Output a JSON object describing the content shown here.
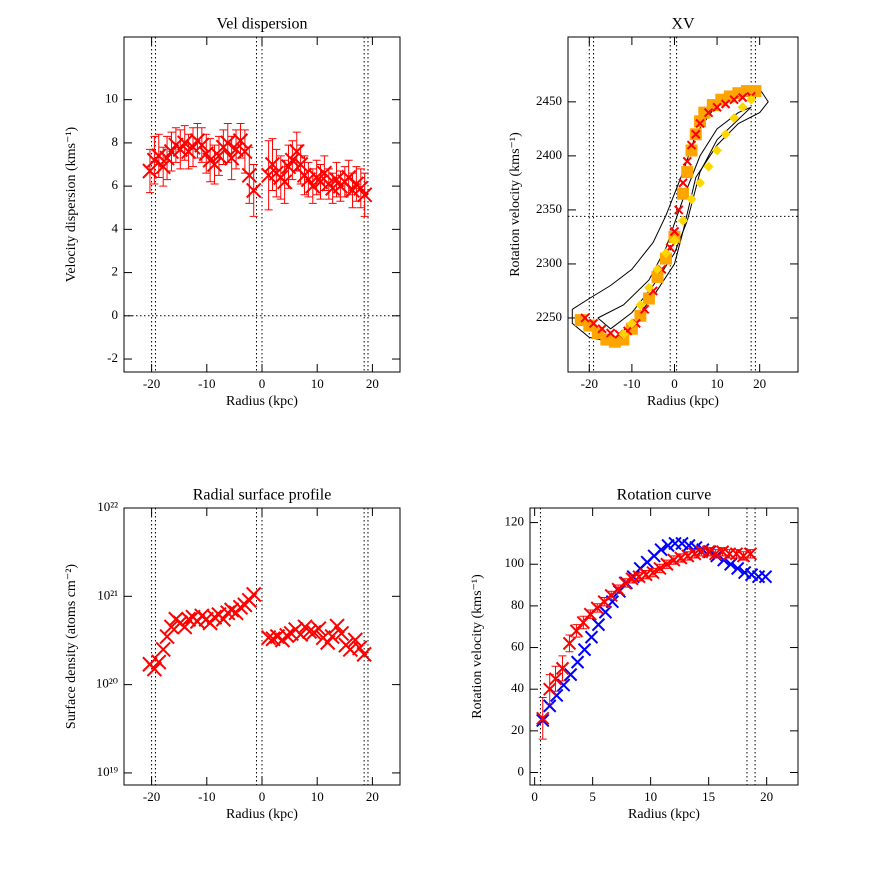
{
  "chart_data": [
    {
      "type": "scatter",
      "title": "Vel dispersion",
      "x_label": "Radius (kpc)",
      "y_label": "Velocity dispersion (kms⁻¹)",
      "xlim": [
        -25,
        25
      ],
      "ylim": [
        -2.6,
        12.9
      ],
      "xticks": [
        -20,
        -10,
        0,
        10,
        20
      ],
      "yticks": [
        -2,
        0,
        2,
        4,
        6,
        8,
        10
      ],
      "vlines": [
        -20,
        -19.3,
        -1,
        0,
        18.5,
        19.2
      ],
      "hlines": [
        0
      ],
      "series": [
        {
          "color": "#ff0000",
          "marker": "x",
          "x": [
            -20.3,
            -19.5,
            -18.7,
            -17.9,
            -17.2,
            -16.4,
            -15.6,
            -14.8,
            -14.0,
            -13.3,
            -12.5,
            -11.7,
            -10.9,
            -10.1,
            -9.4,
            -8.6,
            -7.8,
            -7.0,
            -6.2,
            -5.5,
            -4.7,
            -3.9,
            -3.1,
            -2.3,
            -1.5,
            1.2,
            1.9,
            2.6,
            3.4,
            4.1,
            4.8,
            5.5,
            6.3,
            7.0,
            7.7,
            8.4,
            9.2,
            9.9,
            10.6,
            11.3,
            12.1,
            12.8,
            13.5,
            14.2,
            15.0,
            15.7,
            16.4,
            17.1,
            17.9,
            18.6
          ],
          "values": [
            6.7,
            7.2,
            7.4,
            6.9,
            7.3,
            7.6,
            7.9,
            7.7,
            8.0,
            7.6,
            7.8,
            8.1,
            7.9,
            7.5,
            7.2,
            7.0,
            7.4,
            7.8,
            8.0,
            7.3,
            7.7,
            8.1,
            7.6,
            6.5,
            5.8,
            6.5,
            7.0,
            6.6,
            6.4,
            6.2,
            6.9,
            7.2,
            7.6,
            7.0,
            6.5,
            6.3,
            6.0,
            6.4,
            6.2,
            6.6,
            6.1,
            5.9,
            6.3,
            6.0,
            6.2,
            6.4,
            5.8,
            6.1,
            5.9,
            5.6
          ],
          "errors": [
            1.0,
            1.1,
            1.0,
            0.9,
            1.0,
            0.9,
            0.8,
            0.9,
            0.8,
            0.8,
            0.9,
            0.8,
            0.8,
            0.9,
            1.0,
            0.9,
            0.9,
            0.8,
            0.9,
            1.0,
            0.9,
            0.8,
            1.0,
            1.3,
            1.2,
            1.6,
            1.2,
            1.1,
            1.0,
            1.0,
            1.0,
            0.9,
            0.9,
            0.9,
            0.9,
            0.8,
            0.8,
            0.8,
            0.8,
            0.8,
            0.7,
            0.7,
            0.8,
            0.7,
            0.7,
            0.8,
            0.8,
            0.8,
            0.9,
            1.0
          ]
        }
      ]
    },
    {
      "type": "scatter",
      "title": "XV",
      "x_label": "Radius (kpc)",
      "y_label": "Rotation velocity (kms⁻¹)",
      "xlim": [
        -25,
        29
      ],
      "ylim": [
        2200,
        2510
      ],
      "xticks": [
        -20,
        -10,
        0,
        10,
        20
      ],
      "yticks": [
        2250,
        2300,
        2350,
        2400,
        2450
      ],
      "vlines": [
        -20,
        -19,
        -1,
        0.5,
        18,
        19
      ],
      "hlines": [
        2344
      ],
      "series": [
        {
          "color": "#000000",
          "marker": "line",
          "x": [
            -24,
            -20,
            -15,
            -10,
            -5,
            -2,
            2,
            5,
            10,
            15,
            20,
            22,
            20,
            15,
            10,
            5,
            2,
            0,
            -5,
            -10,
            -15,
            -20,
            -24,
            -24
          ],
          "values": [
            2258,
            2268,
            2280,
            2295,
            2320,
            2345,
            2385,
            2420,
            2448,
            2460,
            2462,
            2450,
            2440,
            2430,
            2410,
            2380,
            2330,
            2300,
            2270,
            2245,
            2228,
            2232,
            2245,
            2258
          ]
        },
        {
          "color": "#000000",
          "marker": "line",
          "x": [
            -18,
            -12,
            -6,
            -2,
            2,
            6,
            10,
            15,
            18,
            14,
            10,
            6,
            3,
            0,
            -5,
            -10,
            -15,
            -18
          ],
          "values": [
            2250,
            2262,
            2285,
            2315,
            2360,
            2400,
            2425,
            2440,
            2445,
            2430,
            2415,
            2385,
            2340,
            2310,
            2280,
            2255,
            2240,
            2250
          ]
        },
        {
          "color": "#ffa500",
          "marker": "square",
          "x": [
            -22,
            -20,
            -18,
            -16,
            -14,
            -12,
            -10,
            -8,
            -6,
            -4,
            -2,
            0,
            2,
            3,
            4,
            5,
            6,
            7,
            9,
            11,
            13,
            15,
            17,
            19
          ],
          "values": [
            2248,
            2243,
            2236,
            2230,
            2228,
            2230,
            2240,
            2252,
            2268,
            2288,
            2305,
            2325,
            2365,
            2385,
            2405,
            2420,
            2432,
            2440,
            2447,
            2452,
            2455,
            2458,
            2460,
            2460
          ]
        },
        {
          "color": "#ff0000",
          "marker": "x",
          "x": [
            -21,
            -19,
            -17,
            -15,
            -13,
            -11,
            -9,
            -7,
            -5,
            -3,
            -1,
            0,
            1,
            2,
            3,
            4,
            5,
            6,
            8,
            10,
            12,
            14,
            16,
            18
          ],
          "values": [
            2250,
            2245,
            2240,
            2236,
            2235,
            2238,
            2245,
            2258,
            2275,
            2295,
            2315,
            2330,
            2350,
            2375,
            2395,
            2410,
            2420,
            2430,
            2440,
            2445,
            2448,
            2452,
            2454,
            2455
          ]
        },
        {
          "color": "#ffd700",
          "marker": "diamond",
          "x": [
            -12,
            -10,
            -8,
            -6,
            -4,
            -2,
            0,
            2,
            4,
            6,
            8,
            10,
            12,
            14,
            16,
            18
          ],
          "values": [
            2235,
            2245,
            2262,
            2278,
            2295,
            2310,
            2322,
            2340,
            2360,
            2375,
            2390,
            2405,
            2420,
            2435,
            2445,
            2452
          ]
        }
      ]
    },
    {
      "type": "scatter",
      "title": "Radial surface profile",
      "x_label": "Radius (kpc)",
      "y_label": "Surface density (atoms cm⁻²)",
      "xlim": [
        -25,
        25
      ],
      "ylim": [
        7.3e+18,
        1e+22
      ],
      "ylog": true,
      "xticks": [
        -20,
        -10,
        0,
        10,
        20
      ],
      "yticks": [
        {
          "value": 1e+19,
          "label": "10¹⁹"
        },
        {
          "value": 1e+20,
          "label": "10²⁰"
        },
        {
          "value": 1e+21,
          "label": "10²¹"
        },
        {
          "value": 1e+22,
          "label": "10²²"
        }
      ],
      "vlines": [
        -20,
        -19.3,
        -1,
        0,
        18.5,
        19.2
      ],
      "series": [
        {
          "color": "#ff0000",
          "marker": "x",
          "x": [
            -20.3,
            -19.5,
            -18.7,
            -17.9,
            -17.2,
            -16.4,
            -15.6,
            -14.8,
            -14.0,
            -13.3,
            -12.5,
            -11.7,
            -10.9,
            -10.1,
            -9.4,
            -8.6,
            -7.8,
            -7.0,
            -6.2,
            -5.5,
            -4.7,
            -3.9,
            -3.1,
            -2.3,
            -1.5,
            1.2,
            2.0,
            2.8,
            3.7,
            4.5,
            5.3,
            6.1,
            7.0,
            7.8,
            8.6,
            9.4,
            10.3,
            11.1,
            11.9,
            12.7,
            13.6,
            14.4,
            15.2,
            16.0,
            16.9,
            17.7,
            18.5
          ],
          "values": [
            1.7e+20,
            1.5e+20,
            1.8e+20,
            2.5e+20,
            3.5e+20,
            4.5e+20,
            5.5e+20,
            5e+20,
            4.5e+20,
            5.5e+20,
            5.8e+20,
            5.2e+20,
            6e+20,
            5.5e+20,
            5e+20,
            5.8e+20,
            6.2e+20,
            5.5e+20,
            6.5e+20,
            7e+20,
            6.5e+20,
            7.5e+20,
            8e+20,
            9e+20,
            1.05e+21,
            3.4e+20,
            3.3e+20,
            3.5e+20,
            3.2e+20,
            3.6e+20,
            3.8e+20,
            4.2e+20,
            3.7e+20,
            4.5e+20,
            4e+20,
            3.9e+20,
            4.3e+20,
            3.4e+20,
            3e+20,
            3.5e+20,
            4.6e+20,
            3.8e+20,
            2.8e+20,
            2.5e+20,
            3.2e+20,
            2.6e+20,
            2.2e+20
          ]
        }
      ]
    },
    {
      "type": "scatter",
      "title": "Rotation curve",
      "x_label": "Radius (kpc)",
      "y_label": "Rotation velocity (kms⁻¹)",
      "xlim": [
        -0.4,
        22.7
      ],
      "ylim": [
        -6,
        127
      ],
      "xticks": [
        0,
        5,
        10,
        15,
        20
      ],
      "yticks": [
        0,
        20,
        40,
        60,
        80,
        100,
        120
      ],
      "vlines": [
        0.5,
        18.3,
        19
      ],
      "series": [
        {
          "color": "#0000ff",
          "marker": "x",
          "x": [
            0.7,
            1.3,
            1.9,
            2.5,
            3.1,
            3.7,
            4.3,
            4.9,
            5.5,
            6.1,
            6.7,
            7.3,
            7.9,
            8.5,
            9.1,
            9.7,
            10.3,
            10.9,
            11.5,
            12.1,
            12.7,
            13.3,
            13.9,
            14.5,
            15.1,
            15.7,
            16.3,
            16.9,
            17.5,
            18.1,
            18.7,
            19.3,
            19.9
          ],
          "values": [
            25,
            32,
            37,
            42,
            47,
            53,
            59,
            65,
            71,
            77,
            82,
            87,
            91,
            94,
            98,
            101,
            104,
            107,
            109,
            110,
            110,
            109,
            108,
            107,
            106,
            104,
            102,
            100,
            98,
            96,
            95,
            94,
            94
          ]
        },
        {
          "color": "#ff0000",
          "marker": "x",
          "x": [
            0.7,
            1.3,
            1.8,
            2.4,
            3.0,
            3.6,
            4.2,
            4.8,
            5.4,
            6.0,
            6.6,
            7.2,
            7.8,
            8.4,
            9.0,
            9.6,
            10.2,
            10.8,
            11.4,
            12.0,
            12.6,
            13.2,
            13.8,
            14.4,
            15.0,
            15.6,
            16.2,
            16.8,
            17.4,
            18.0,
            18.6
          ],
          "values": [
            26,
            40,
            45,
            50,
            62,
            68,
            72,
            76,
            79,
            82,
            85,
            88,
            91,
            93,
            94,
            95,
            96,
            98,
            100,
            102,
            103,
            104,
            105,
            106,
            106,
            105,
            106,
            105,
            105,
            104,
            105
          ],
          "errors": [
            10,
            7,
            6,
            6,
            4,
            3,
            3,
            2,
            2,
            2,
            2,
            2,
            2,
            2,
            2,
            2,
            2,
            2,
            2,
            2,
            2,
            2,
            2,
            2,
            2,
            2,
            2,
            2,
            2,
            2,
            2
          ]
        }
      ]
    }
  ]
}
